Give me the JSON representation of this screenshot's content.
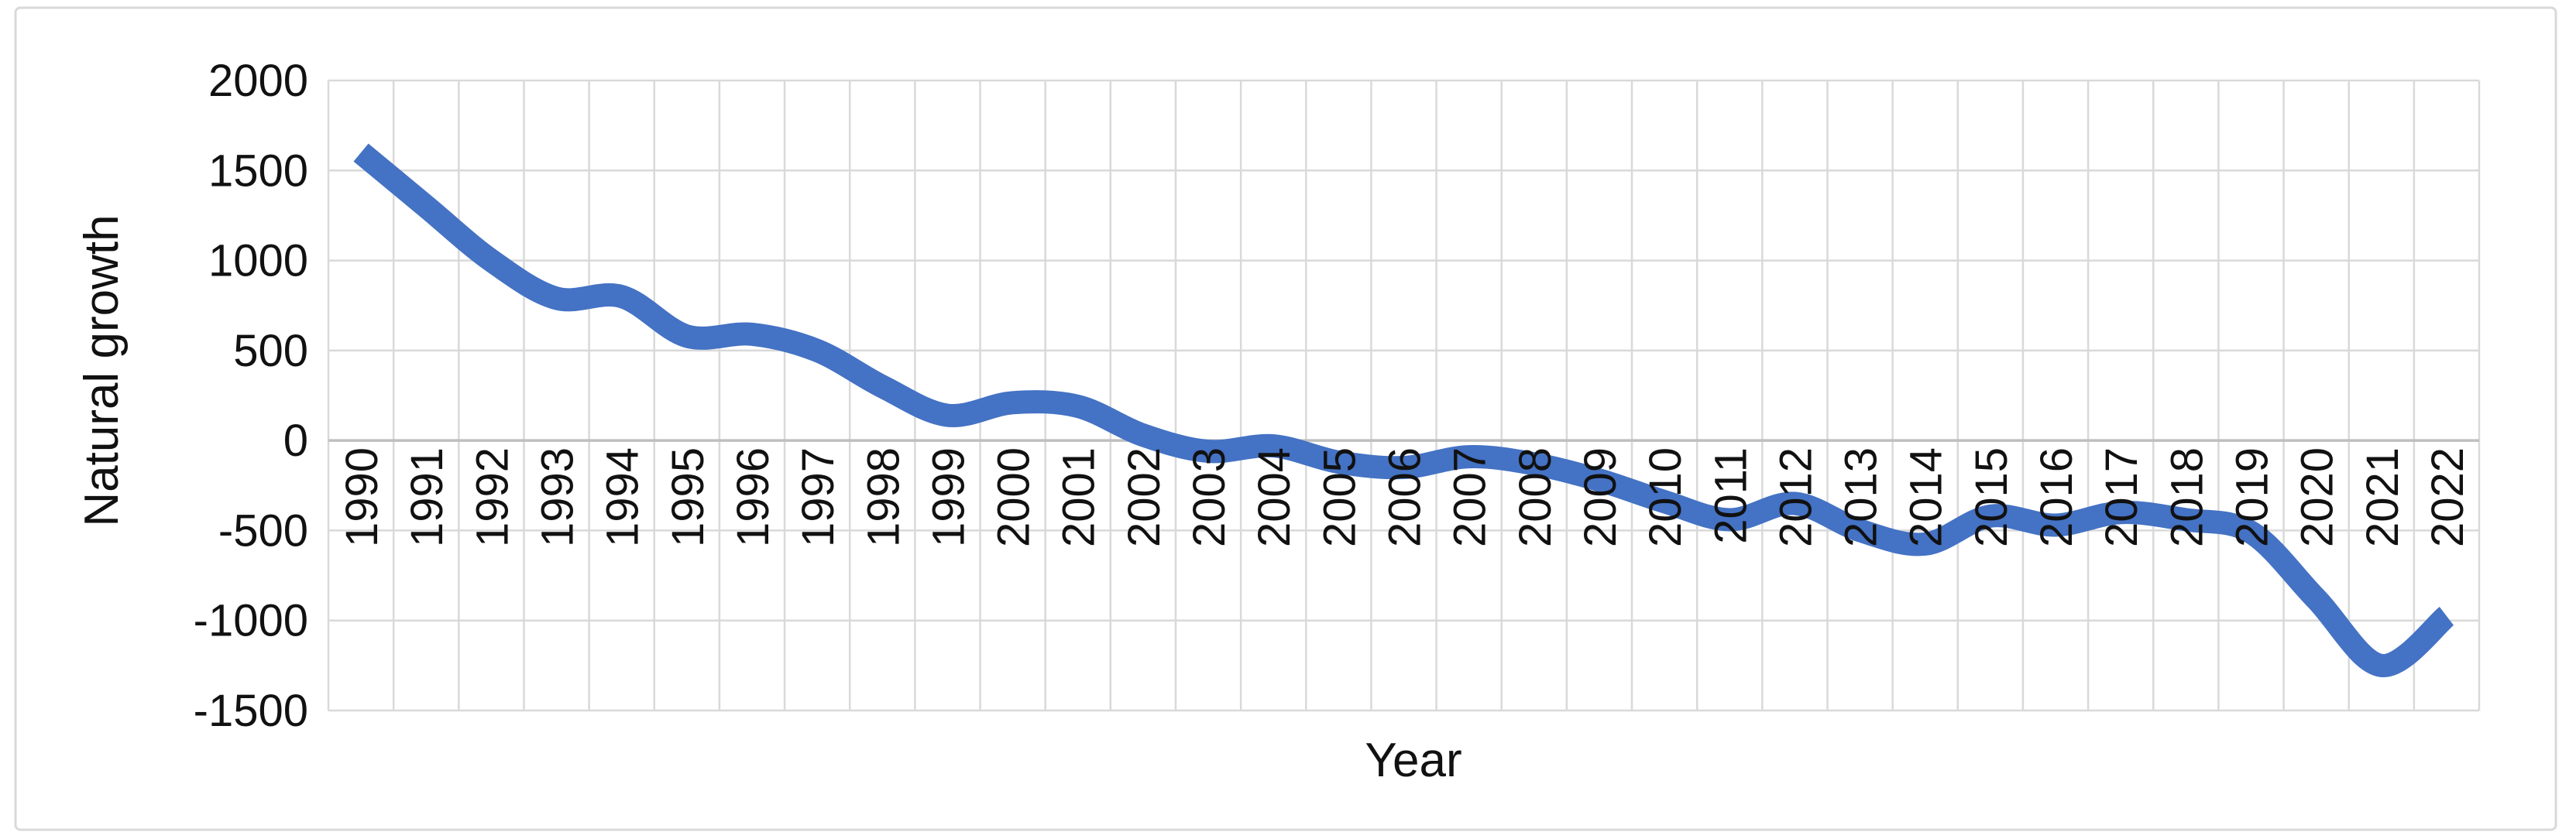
{
  "chart_data": {
    "type": "line",
    "title": "",
    "xlabel": "Year",
    "ylabel": "Natural growth",
    "categories": [
      "1990",
      "1991",
      "1992",
      "1993",
      "1994",
      "1995",
      "1996",
      "1997",
      "1998",
      "1999",
      "2000",
      "2001",
      "2002",
      "2003",
      "2004",
      "2005",
      "2006",
      "2007",
      "2008",
      "2009",
      "2010",
      "2011",
      "2012",
      "2013",
      "2014",
      "2015",
      "2016",
      "2017",
      "2018",
      "2019",
      "2020",
      "2021",
      "2022"
    ],
    "values": [
      1600,
      1300,
      1000,
      790,
      800,
      580,
      590,
      500,
      300,
      140,
      210,
      190,
      30,
      -60,
      -30,
      -120,
      -150,
      -90,
      -130,
      -220,
      -340,
      -440,
      -350,
      -500,
      -575,
      -420,
      -470,
      -400,
      -440,
      -510,
      -880,
      -1250,
      -975
    ],
    "yticks": [
      2000,
      1500,
      1000,
      500,
      0,
      -500,
      -1000,
      -1500
    ],
    "ylim": [
      -1500,
      2000
    ],
    "grid": true,
    "legend_position": "none",
    "smooth": true,
    "line_color": "#4472C4"
  },
  "colors": {
    "line": "#4472C4",
    "gridline": "#D9D9D9",
    "zero_axis": "#BFBFBF",
    "chart_border": "#D9D9D9",
    "text": "#111111",
    "background": "#FFFFFF"
  }
}
